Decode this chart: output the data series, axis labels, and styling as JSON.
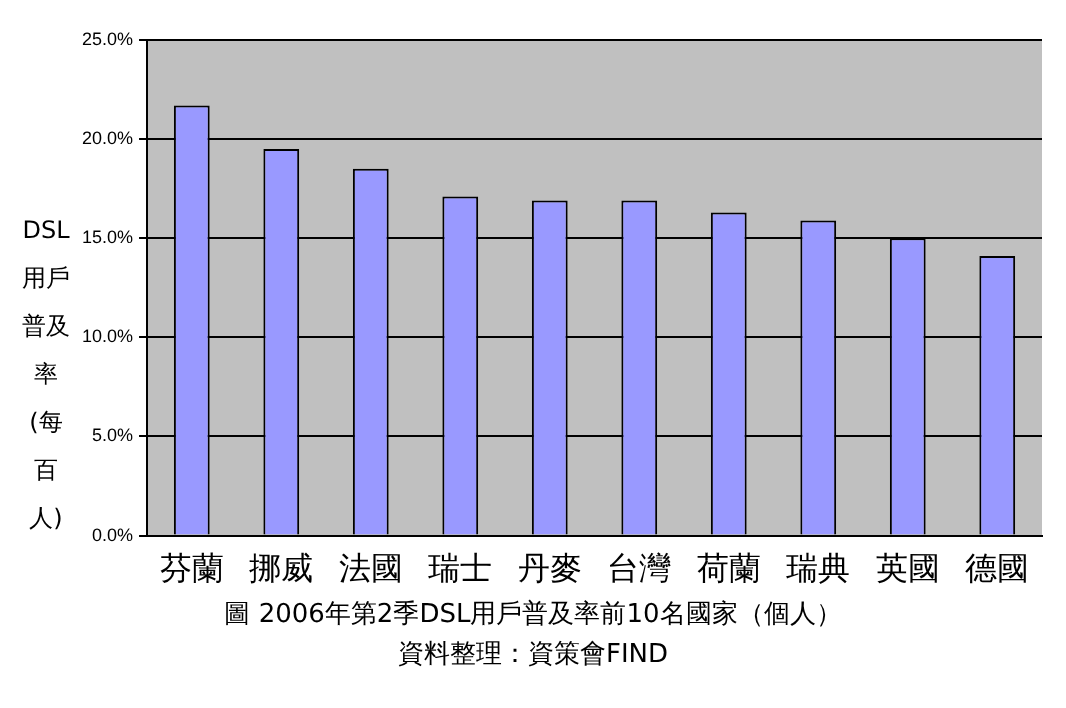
{
  "chart_data": {
    "type": "bar",
    "title": "圖 2006年第2季DSL用戶普及率前10名國家（個人）",
    "ylabel": "DSL用戶普及率(每百人)",
    "annotations": [
      "資料整理：資策會FIND"
    ],
    "categories": [
      "芬蘭",
      "挪威",
      "法國",
      "瑞士",
      "丹麥",
      "台灣",
      "荷蘭",
      "瑞典",
      "英國",
      "德國"
    ],
    "values": [
      21.7,
      19.5,
      18.5,
      17.1,
      16.9,
      16.9,
      16.3,
      15.9,
      15.0,
      14.1
    ],
    "color": "#9999ff",
    "ylim": [
      0,
      25
    ],
    "yticks": [
      {
        "value": 0,
        "label": "0.0%"
      },
      {
        "value": 5,
        "label": "5.0%"
      },
      {
        "value": 10,
        "label": "10.0%"
      },
      {
        "value": 15,
        "label": "15.0%"
      },
      {
        "value": 20,
        "label": "20.0%"
      },
      {
        "value": 25,
        "label": "25.0%"
      }
    ],
    "grid": "y",
    "legend": false
  }
}
